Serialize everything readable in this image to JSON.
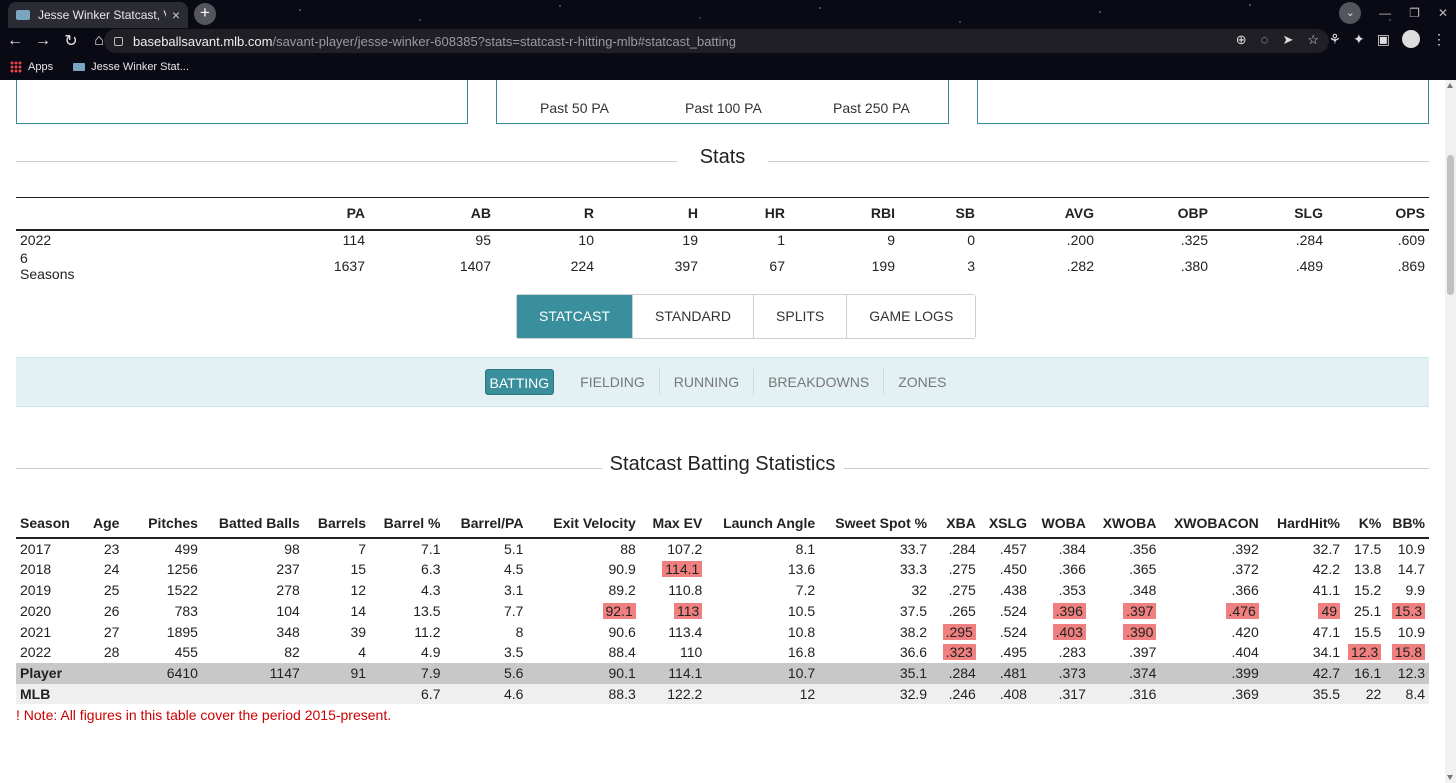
{
  "browser": {
    "tab_title": "Jesse Winker Statcast, Visuali",
    "url_host": "baseballsavant.mlb.com",
    "url_path": "/savant-player/jesse-winker-608385?stats=statcast-r-hitting-mlb#statcast_batting",
    "bookmarks": [
      "Apps",
      "Jesse Winker Stat..."
    ]
  },
  "top_panels": {
    "labels": [
      "Past 50 PA",
      "Past 100 PA",
      "Past 250 PA"
    ]
  },
  "stats": {
    "title": "Stats",
    "headers": [
      "",
      "PA",
      "AB",
      "R",
      "H",
      "HR",
      "RBI",
      "SB",
      "AVG",
      "OBP",
      "SLG",
      "OPS"
    ],
    "rows": [
      [
        "2022",
        "114",
        "95",
        "10",
        "19",
        "1",
        "9",
        "0",
        ".200",
        ".325",
        ".284",
        ".609"
      ],
      [
        "6 Seasons",
        "1637",
        "1407",
        "224",
        "397",
        "67",
        "199",
        "3",
        ".282",
        ".380",
        ".489",
        ".869"
      ]
    ]
  },
  "main_tabs": [
    "STATCAST",
    "STANDARD",
    "SPLITS",
    "GAME LOGS"
  ],
  "sub_tabs": [
    "BATTING",
    "FIELDING",
    "RUNNING",
    "BREAKDOWNS",
    "ZONES"
  ],
  "statcast": {
    "title": "Statcast Batting Statistics",
    "headers": [
      "Season",
      "Age",
      "Pitches",
      "Batted Balls",
      "Barrels",
      "Barrel %",
      "Barrel/PA",
      "Exit Velocity",
      "Max EV",
      "Launch Angle",
      "Sweet Spot %",
      "XBA",
      "XSLG",
      "WOBA",
      "XWOBA",
      "XWOBACON",
      "HardHit%",
      "K%",
      "BB%"
    ],
    "rows": [
      [
        "2017",
        "23",
        "499",
        "98",
        "7",
        "7.1",
        "5.1",
        "88",
        "107.2",
        "8.1",
        "33.7",
        ".284",
        ".457",
        ".384",
        ".356",
        ".392",
        "32.7",
        "17.5",
        "10.9"
      ],
      [
        "2018",
        "24",
        "1256",
        "237",
        "15",
        "6.3",
        "4.5",
        "90.9",
        "114.1",
        "13.6",
        "33.3",
        ".275",
        ".450",
        ".366",
        ".365",
        ".372",
        "42.2",
        "13.8",
        "14.7"
      ],
      [
        "2019",
        "25",
        "1522",
        "278",
        "12",
        "4.3",
        "3.1",
        "89.2",
        "110.8",
        "7.2",
        "32",
        ".275",
        ".438",
        ".353",
        ".348",
        ".366",
        "41.1",
        "15.2",
        "9.9"
      ],
      [
        "2020",
        "26",
        "783",
        "104",
        "14",
        "13.5",
        "7.7",
        "92.1",
        "113",
        "10.5",
        "37.5",
        ".265",
        ".524",
        ".396",
        ".397",
        ".476",
        "49",
        "25.1",
        "15.3"
      ],
      [
        "2021",
        "27",
        "1895",
        "348",
        "39",
        "11.2",
        "8",
        "90.6",
        "113.4",
        "10.8",
        "38.2",
        ".295",
        ".524",
        ".403",
        ".390",
        ".420",
        "47.1",
        "15.5",
        "10.9"
      ],
      [
        "2022",
        "28",
        "455",
        "82",
        "4",
        "4.9",
        "3.5",
        "88.4",
        "110",
        "16.8",
        "36.6",
        ".323",
        ".495",
        ".283",
        ".397",
        ".404",
        "34.1",
        "12.3",
        "15.8"
      ]
    ],
    "highlights": [
      [
        1,
        8
      ],
      [
        3,
        7
      ],
      [
        3,
        8
      ],
      [
        3,
        13
      ],
      [
        3,
        14
      ],
      [
        3,
        15
      ],
      [
        3,
        16
      ],
      [
        3,
        18
      ],
      [
        4,
        11
      ],
      [
        4,
        13
      ],
      [
        4,
        14
      ],
      [
        5,
        11
      ],
      [
        5,
        17
      ],
      [
        5,
        18
      ]
    ],
    "highlight_color": "#f08080",
    "player_row": [
      "Player",
      "",
      "6410",
      "1147",
      "91",
      "7.9",
      "5.6",
      "90.1",
      "114.1",
      "10.7",
      "35.1",
      ".284",
      ".481",
      ".373",
      ".374",
      ".399",
      "42.7",
      "16.1",
      "12.3"
    ],
    "mlb_row": [
      "MLB",
      "",
      "",
      "",
      "",
      "6.7",
      "4.6",
      "88.3",
      "122.2",
      "12",
      "32.9",
      ".246",
      ".408",
      ".317",
      ".316",
      ".369",
      "35.5",
      "22",
      "8.4"
    ]
  },
  "note": "! Note: All figures in this table cover the period 2015-present.",
  "colors": {
    "accent": "#3a8f9c",
    "note": "#cc0000"
  }
}
